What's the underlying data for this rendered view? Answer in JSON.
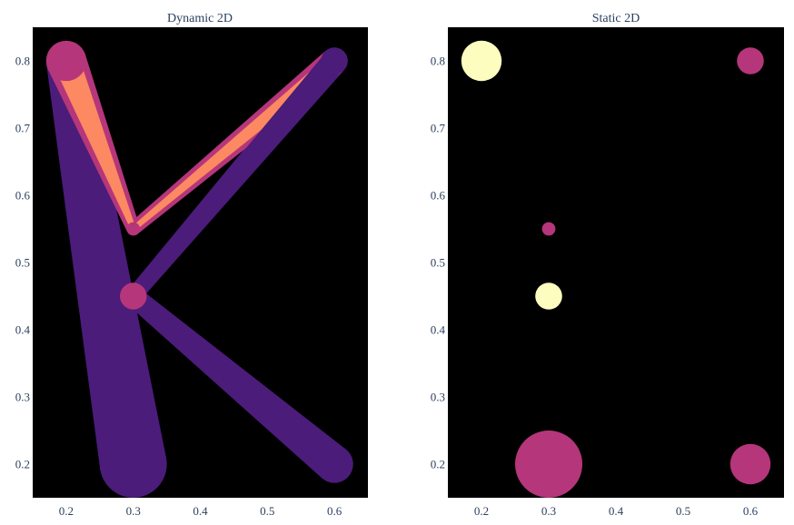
{
  "chart_data": [
    {
      "type": "scatter",
      "title": "Dynamic 2D",
      "xlabel": "",
      "ylabel": "",
      "xlim": [
        0.15,
        0.65
      ],
      "ylim": [
        0.15,
        0.85
      ],
      "xticks": [
        "0.2",
        "0.3",
        "0.4",
        "0.5",
        "0.6"
      ],
      "yticks": [
        "0.2",
        "0.3",
        "0.4",
        "0.5",
        "0.6",
        "0.7",
        "0.8"
      ],
      "background": "#000000",
      "grid": false,
      "segments": [
        {
          "x0": 0.2,
          "y0": 0.8,
          "x1": 0.3,
          "y1": 0.2,
          "w0": 0.03,
          "w1": 0.05,
          "color": "#4b1c7a"
        },
        {
          "x0": 0.3,
          "y0": 0.45,
          "x1": 0.6,
          "y1": 0.2,
          "w0": 0.015,
          "w1": 0.028,
          "color": "#4b1c7a"
        },
        {
          "x0": 0.3,
          "y0": 0.45,
          "x1": 0.6,
          "y1": 0.8,
          "w0": 0.012,
          "w1": 0.02,
          "color": "#4b1c7a"
        },
        {
          "x0": 0.2,
          "y0": 0.8,
          "x1": 0.3,
          "y1": 0.55,
          "w0": 0.03,
          "w1": 0.01,
          "color": "#b5367a"
        },
        {
          "x0": 0.3,
          "y0": 0.55,
          "x1": 0.6,
          "y1": 0.8,
          "w0": 0.01,
          "w1": 0.02,
          "color": "#b5367a"
        },
        {
          "x0": 0.2,
          "y0": 0.8,
          "x1": 0.3,
          "y1": 0.55,
          "w0": 0.02,
          "w1": 0.004,
          "color": "#fc8961"
        },
        {
          "x0": 0.3,
          "y0": 0.55,
          "x1": 0.6,
          "y1": 0.8,
          "w0": 0.004,
          "w1": 0.012,
          "color": "#fc8961"
        },
        {
          "x0": 0.6,
          "y0": 0.8,
          "x1": 0.3,
          "y1": 0.45,
          "w0": 0.018,
          "w1": 0.012,
          "color": "#4b1c7a"
        }
      ],
      "points": [
        {
          "x": 0.2,
          "y": 0.8,
          "r": 0.03,
          "color": "#b5367a"
        },
        {
          "x": 0.3,
          "y": 0.55,
          "r": 0.01,
          "color": "#b5367a"
        },
        {
          "x": 0.3,
          "y": 0.45,
          "r": 0.02,
          "color": "#b5367a"
        },
        {
          "x": 0.6,
          "y": 0.8,
          "r": 0.02,
          "color": "#4b1c7a"
        },
        {
          "x": 0.3,
          "y": 0.2,
          "r": 0.05,
          "color": "#4b1c7a"
        },
        {
          "x": 0.6,
          "y": 0.2,
          "r": 0.028,
          "color": "#4b1c7a"
        }
      ]
    },
    {
      "type": "scatter",
      "title": "Static 2D",
      "xlabel": "",
      "ylabel": "",
      "xlim": [
        0.15,
        0.65
      ],
      "ylim": [
        0.15,
        0.85
      ],
      "xticks": [
        "0.2",
        "0.3",
        "0.4",
        "0.5",
        "0.6"
      ],
      "yticks": [
        "0.2",
        "0.3",
        "0.4",
        "0.5",
        "0.6",
        "0.7",
        "0.8"
      ],
      "background": "#000000",
      "grid": false,
      "points": [
        {
          "x": 0.2,
          "y": 0.8,
          "r": 0.03,
          "color": "#fcfdbf"
        },
        {
          "x": 0.6,
          "y": 0.8,
          "r": 0.02,
          "color": "#b5367a"
        },
        {
          "x": 0.3,
          "y": 0.55,
          "r": 0.01,
          "color": "#b5367a"
        },
        {
          "x": 0.3,
          "y": 0.45,
          "r": 0.02,
          "color": "#fcfdbf"
        },
        {
          "x": 0.3,
          "y": 0.2,
          "r": 0.05,
          "color": "#b5367a"
        },
        {
          "x": 0.6,
          "y": 0.2,
          "r": 0.03,
          "color": "#b5367a"
        }
      ]
    }
  ]
}
